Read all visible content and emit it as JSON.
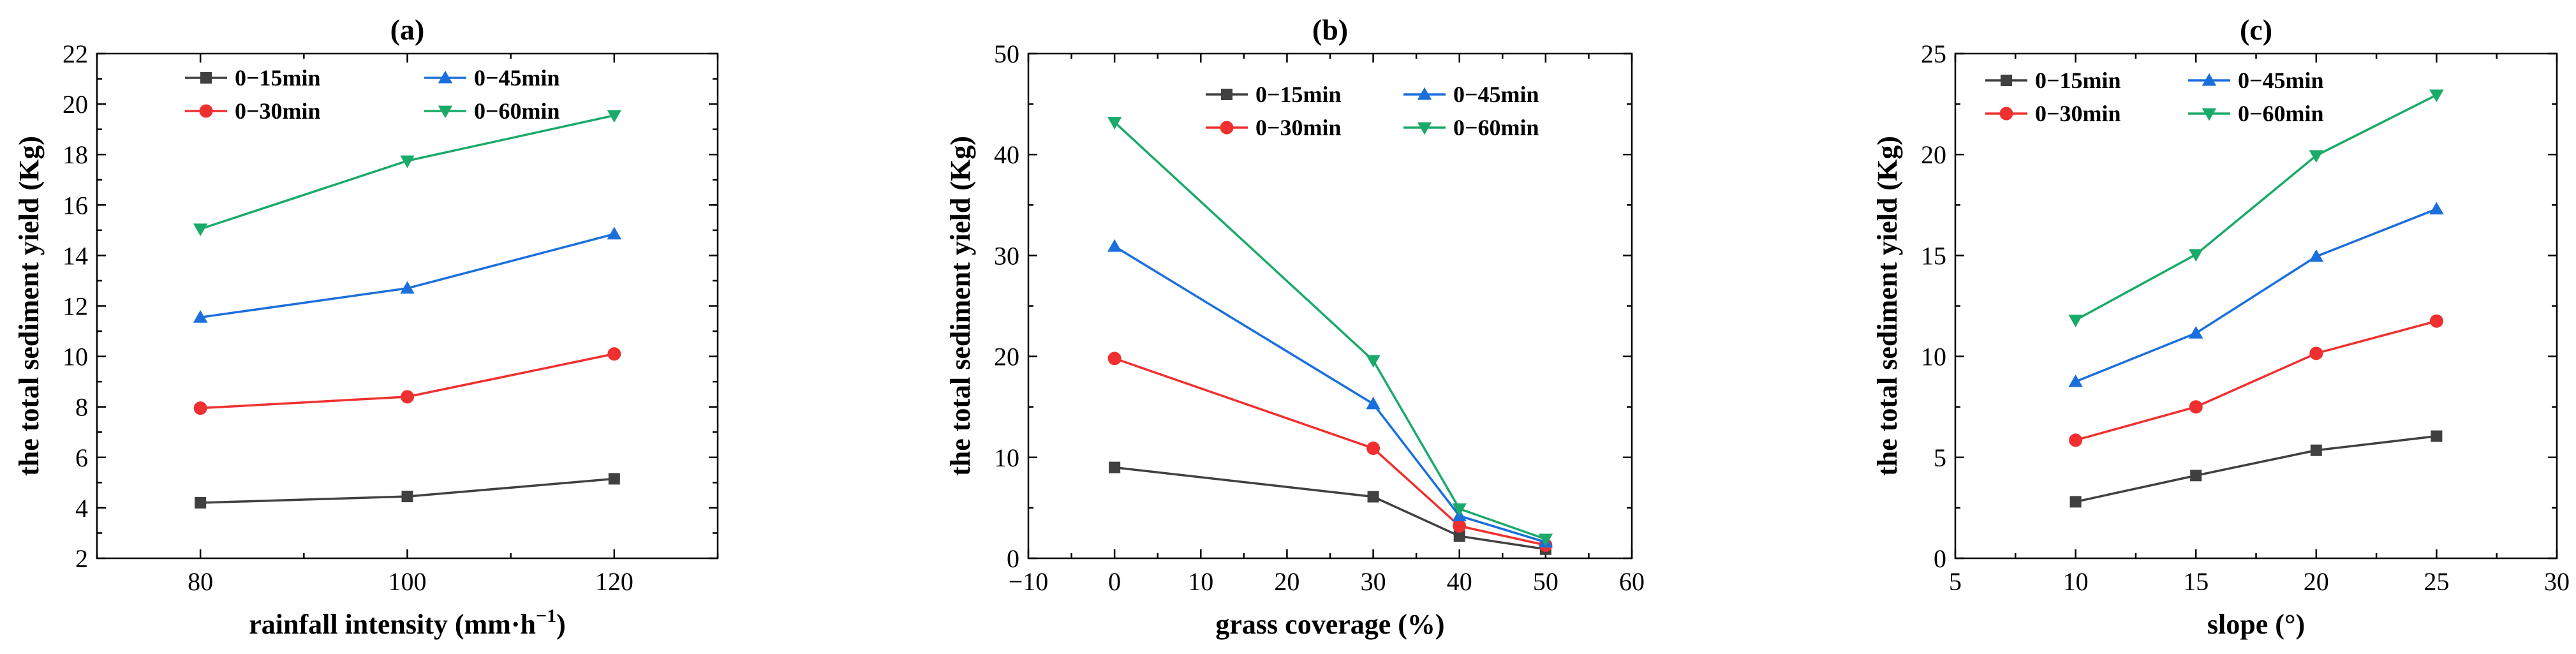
{
  "chart_data": [
    {
      "type": "line",
      "title": "(a)",
      "xlabel": "rainfall intensity (mm·h",
      "xlabel_sup": "−1",
      "xlabel_tail": ")",
      "ylabel": "the total sediment yield (Kg)",
      "xlim": [
        70,
        130
      ],
      "ylim": [
        2,
        22
      ],
      "xticks": [
        80,
        100,
        120
      ],
      "yticks": [
        2,
        4,
        6,
        8,
        10,
        12,
        14,
        16,
        18,
        20,
        22
      ],
      "x": [
        80,
        100,
        120
      ],
      "legend_position": "top-left",
      "series": [
        {
          "name": "0−15min",
          "color": "#404040",
          "marker": "square",
          "values": [
            4.2,
            4.45,
            5.15
          ]
        },
        {
          "name": "0−30min",
          "color": "#f03030",
          "marker": "circle",
          "values": [
            7.95,
            8.4,
            10.1
          ]
        },
        {
          "name": "0−45min",
          "color": "#1a6fdc",
          "marker": "triangle-up",
          "values": [
            11.55,
            12.7,
            14.85
          ]
        },
        {
          "name": "0−60min",
          "color": "#1aaa6a",
          "marker": "triangle-down",
          "values": [
            15.05,
            17.75,
            19.55
          ]
        }
      ]
    },
    {
      "type": "line",
      "title": "(b)",
      "xlabel": "grass coverage (%)",
      "xlabel_sup": "",
      "xlabel_tail": "",
      "ylabel": "the total sediment yield (Kg)",
      "xlim": [
        -10,
        60
      ],
      "ylim": [
        0,
        50
      ],
      "xticks": [
        -10,
        0,
        10,
        20,
        30,
        40,
        50,
        60
      ],
      "yticks": [
        0,
        10,
        20,
        30,
        40,
        50
      ],
      "x": [
        0,
        30,
        40,
        50
      ],
      "legend_position": "top-right",
      "series": [
        {
          "name": "0−15min",
          "color": "#404040",
          "marker": "square",
          "values": [
            9.0,
            6.1,
            2.2,
            0.9
          ]
        },
        {
          "name": "0−30min",
          "color": "#f03030",
          "marker": "circle",
          "values": [
            19.8,
            10.9,
            3.2,
            1.3
          ]
        },
        {
          "name": "0−45min",
          "color": "#1a6fdc",
          "marker": "triangle-up",
          "values": [
            30.9,
            15.3,
            4.2,
            1.6
          ]
        },
        {
          "name": "0−60min",
          "color": "#1aaa6a",
          "marker": "triangle-down",
          "values": [
            43.2,
            19.6,
            4.9,
            1.9
          ]
        }
      ]
    },
    {
      "type": "line",
      "title": "(c)",
      "xlabel": "slope (°)",
      "xlabel_sup": "",
      "xlabel_tail": "",
      "ylabel": "the total sediment yield (Kg)",
      "xlim": [
        5,
        30
      ],
      "ylim": [
        0,
        25
      ],
      "xticks": [
        5,
        10,
        15,
        20,
        25,
        30
      ],
      "yticks": [
        0,
        5,
        10,
        15,
        20,
        25
      ],
      "x": [
        10,
        15,
        20,
        25
      ],
      "legend_position": "top-left",
      "series": [
        {
          "name": "0−15min",
          "color": "#404040",
          "marker": "square",
          "values": [
            2.8,
            4.1,
            5.35,
            6.05
          ]
        },
        {
          "name": "0−30min",
          "color": "#f03030",
          "marker": "circle",
          "values": [
            5.85,
            7.5,
            10.15,
            11.75
          ]
        },
        {
          "name": "0−45min",
          "color": "#1a6fdc",
          "marker": "triangle-up",
          "values": [
            8.75,
            11.15,
            14.95,
            17.3
          ]
        },
        {
          "name": "0−60min",
          "color": "#1aaa6a",
          "marker": "triangle-down",
          "values": [
            11.8,
            15.05,
            19.95,
            22.95
          ]
        }
      ]
    }
  ]
}
